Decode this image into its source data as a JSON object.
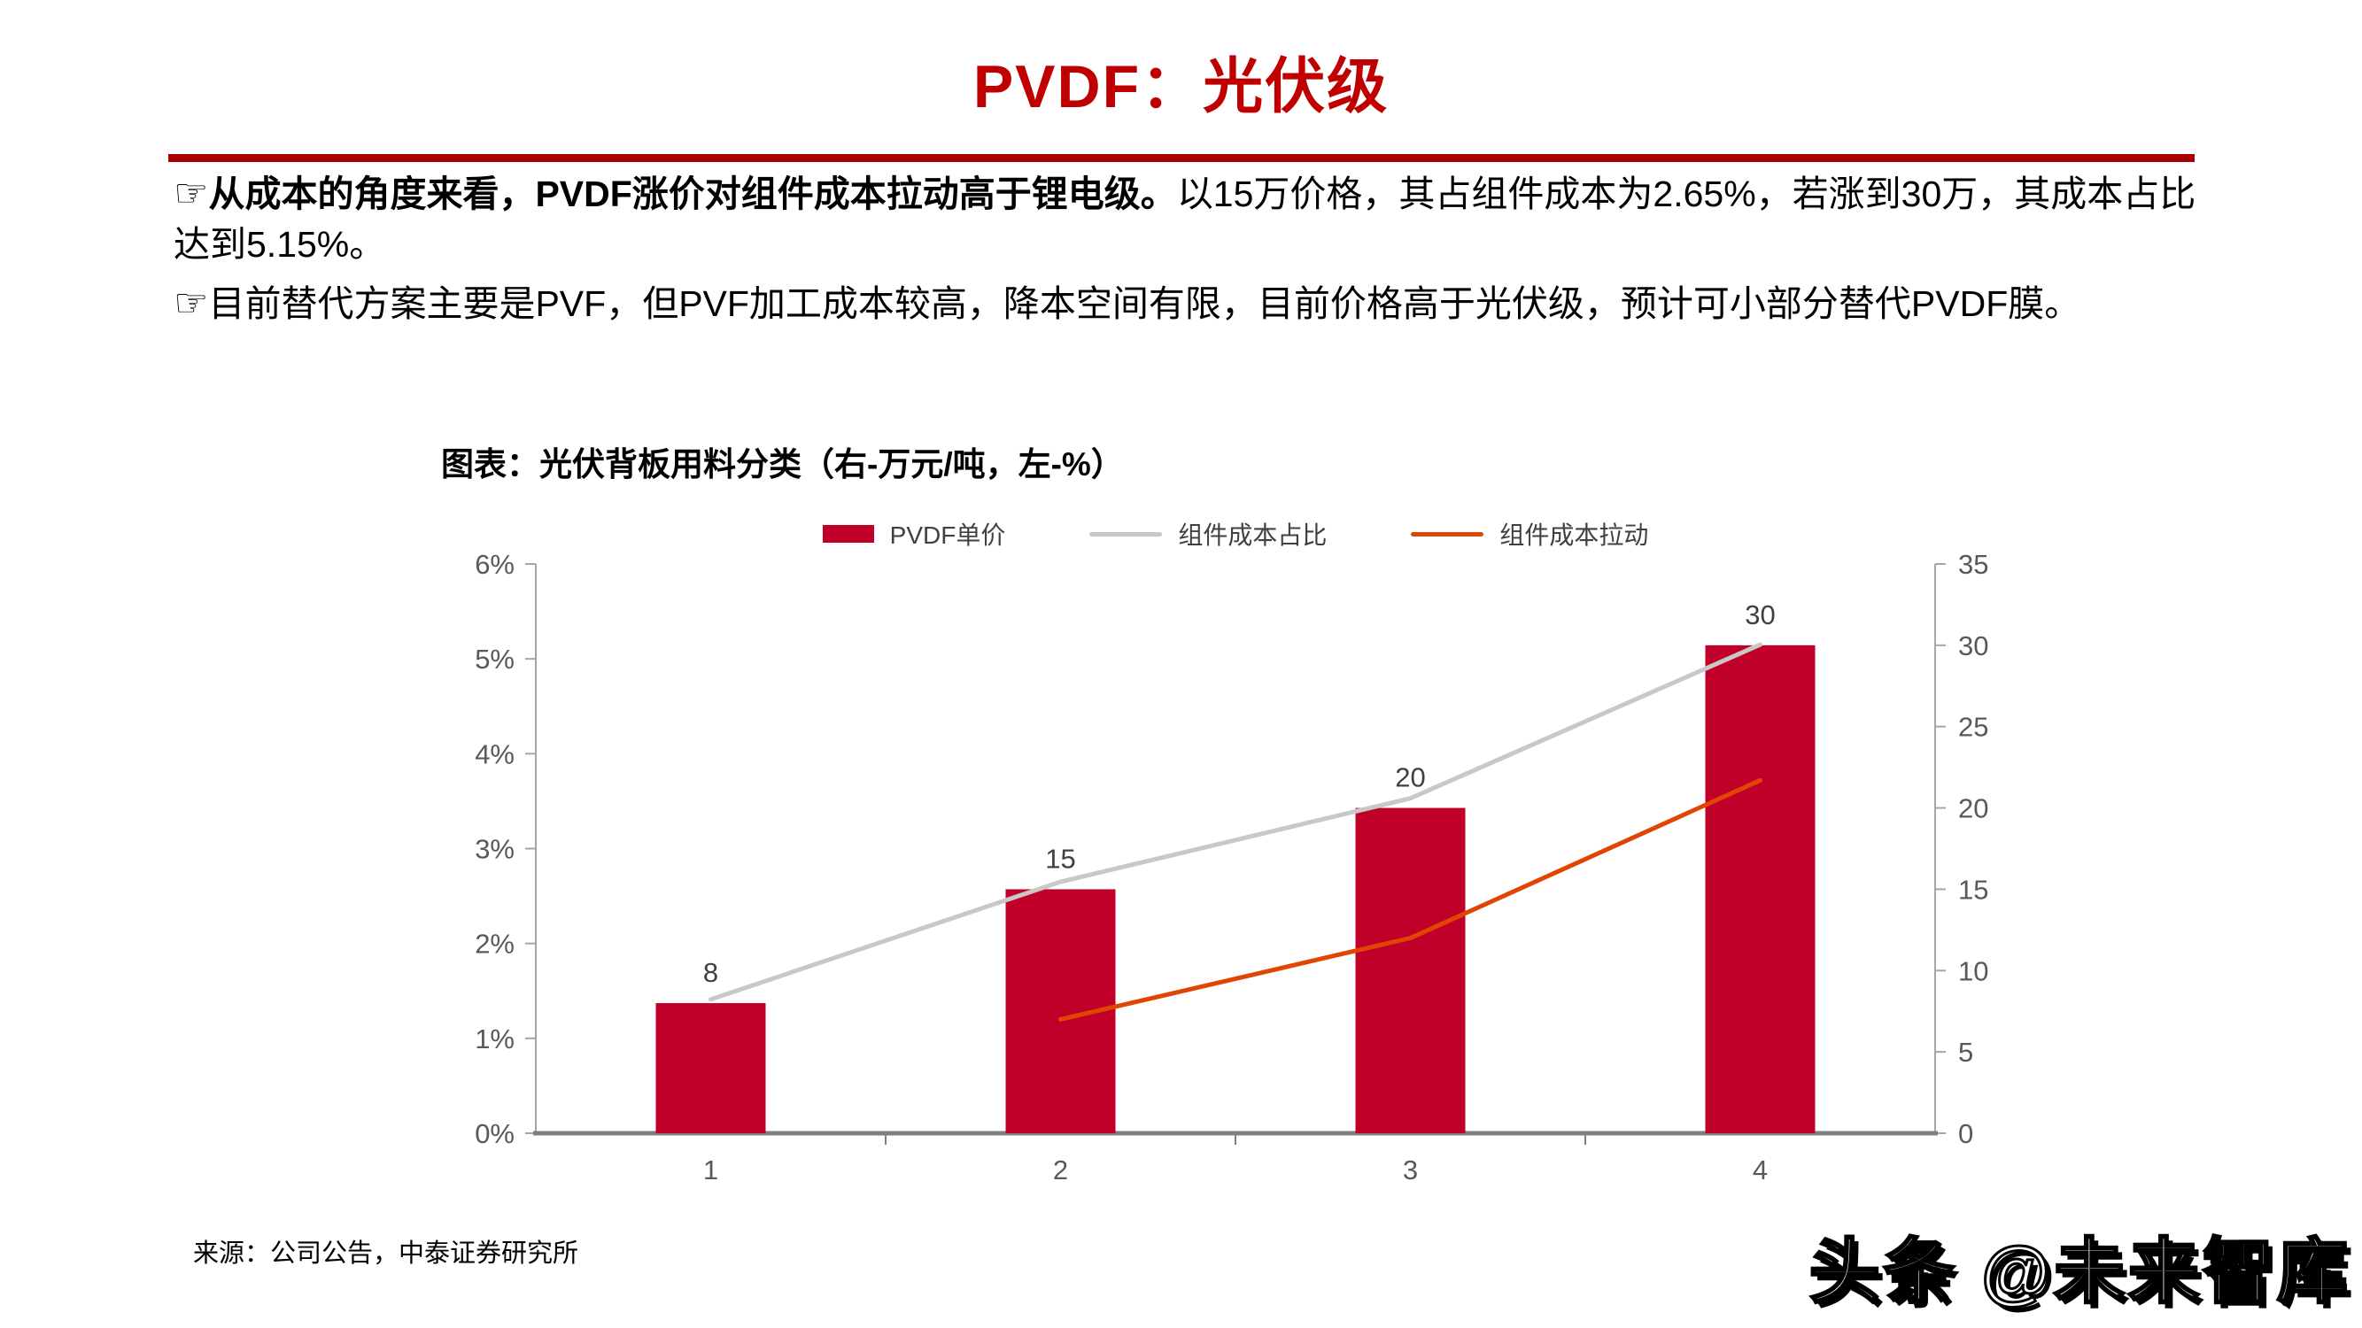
{
  "slide": {
    "title": "PVDF：光伏级",
    "title_color": "#C00000",
    "rule_color": "#A60000",
    "bullets": [
      {
        "pointer": "☞",
        "bold": "从成本的角度来看，PVDF涨价对组件成本拉动高于锂电级。",
        "rest": "以15万价格，其占组件成本为2.65%，若涨到30万，其成本占比达到5.15%。"
      },
      {
        "pointer": "☞",
        "bold": "",
        "rest": "目前替代方案主要是PVF，但PVF加工成本较高，降本空间有限，目前价格高于光伏级，预计可小部分替代PVDF膜。"
      }
    ],
    "source": "来源：公司公告，中泰证券研究所",
    "watermark": "头条 @未来智库"
  },
  "chart_data": {
    "type": "bar+line",
    "title": "图表：光伏背板用料分类（右-万元/吨，左-%）",
    "legend_position": "top",
    "categories": [
      "1",
      "2",
      "3",
      "4"
    ],
    "series": [
      {
        "name": "PVDF单价",
        "type": "bar",
        "axis": "right",
        "values": [
          8,
          15,
          20,
          30
        ],
        "labels": [
          "8",
          "15",
          "20",
          "30"
        ],
        "color": "#C10029"
      },
      {
        "name": "组件成本占比",
        "type": "line",
        "axis": "left",
        "values": [
          1.41,
          2.65,
          3.53,
          5.15
        ],
        "color": "#C8C8C8"
      },
      {
        "name": "组件成本拉动",
        "type": "line",
        "axis": "right",
        "values": [
          null,
          7,
          12,
          21.7
        ],
        "color": "#E04503"
      }
    ],
    "left_axis": {
      "label": "左-%",
      "min": 0,
      "max": 6,
      "step": 1,
      "ticks": [
        "0%",
        "1%",
        "2%",
        "3%",
        "4%",
        "5%",
        "6%"
      ]
    },
    "right_axis": {
      "label": "右-万元/吨",
      "min": 0,
      "max": 35,
      "step": 5,
      "ticks": [
        "0",
        "5",
        "10",
        "15",
        "20",
        "25",
        "30",
        "35"
      ]
    }
  }
}
